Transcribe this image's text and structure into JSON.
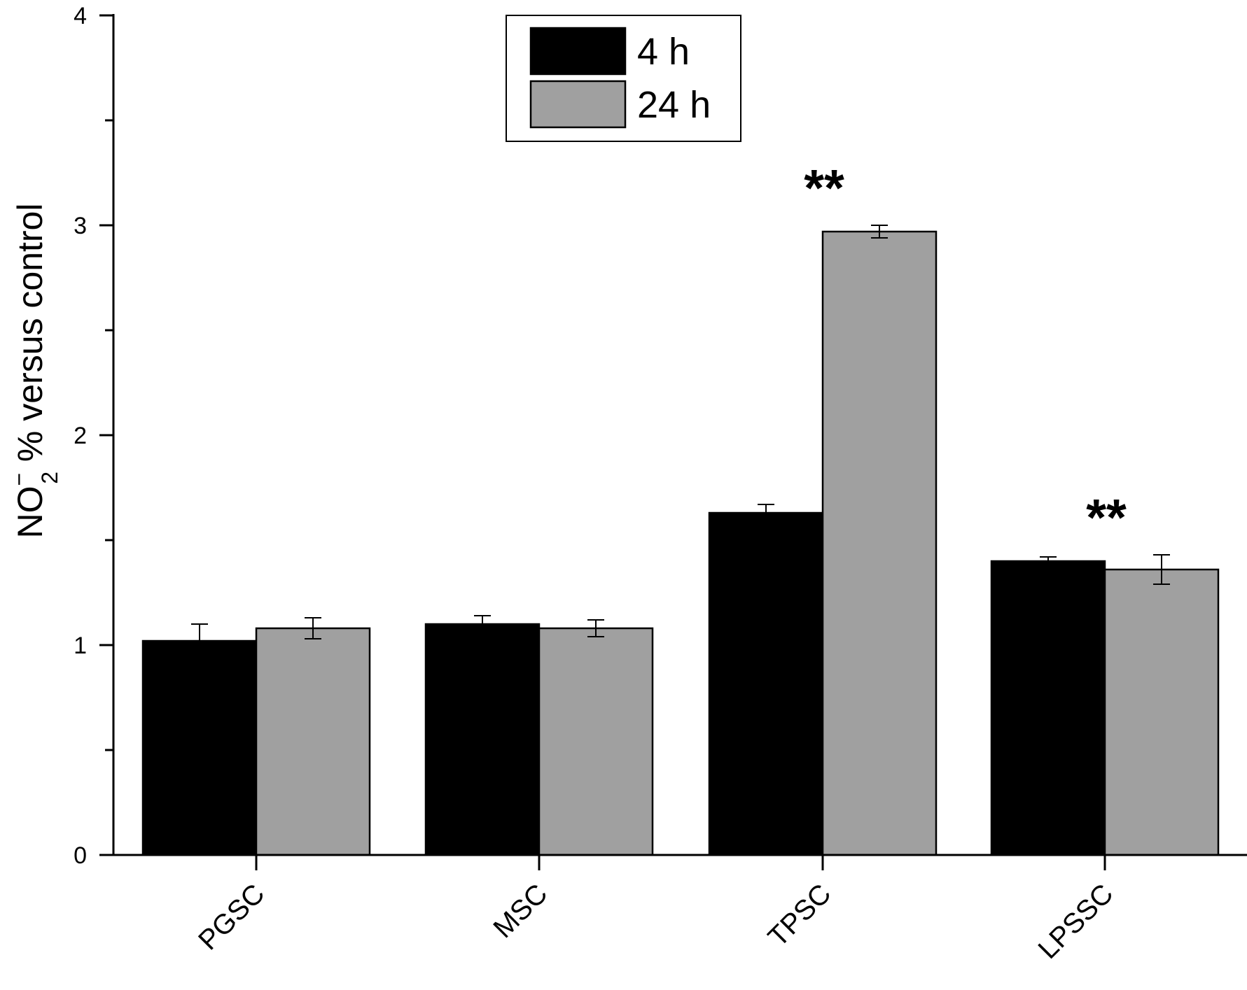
{
  "chart_data": {
    "type": "bar",
    "categories": [
      "PGSC",
      "MSC",
      "TPSC",
      "LPSSC"
    ],
    "series": [
      {
        "name": "4 h",
        "color": "#000000",
        "values": [
          1.02,
          1.1,
          1.63,
          1.4
        ],
        "errors": [
          0.08,
          0.04,
          0.04,
          0.02
        ]
      },
      {
        "name": "24 h",
        "color": "#a0a0a0",
        "values": [
          1.08,
          1.08,
          2.97,
          1.36
        ],
        "errors": [
          0.05,
          0.04,
          0.03,
          0.07
        ]
      }
    ],
    "ylim": [
      0,
      4
    ],
    "yticks": [
      "0",
      "1",
      "2",
      "3",
      "4"
    ],
    "ylabel": {
      "main": "NO",
      "superscript": "−",
      "subscript": "2",
      "rest": " % versus control"
    },
    "annotations": [
      {
        "category": "TPSC",
        "text": "**"
      },
      {
        "category": "LPSSC",
        "text": "**"
      }
    ],
    "legend_position": "top-center",
    "grid": false
  }
}
